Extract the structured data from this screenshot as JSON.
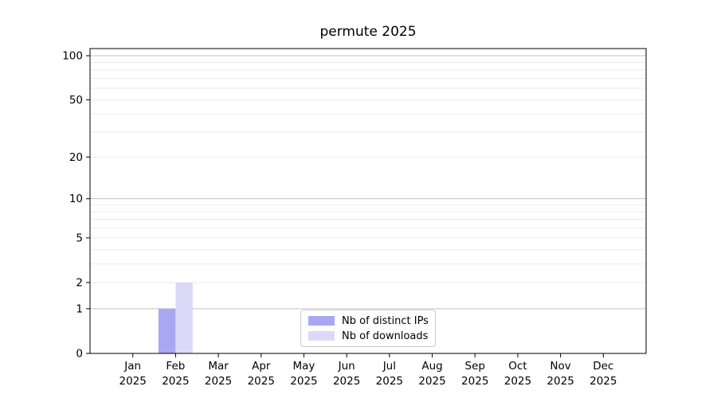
{
  "chart_data": {
    "type": "bar",
    "title": "permute 2025",
    "categories": [
      "Jan 2025",
      "Feb 2025",
      "Mar 2025",
      "Apr 2025",
      "May 2025",
      "Jun 2025",
      "Jul 2025",
      "Aug 2025",
      "Sep 2025",
      "Oct 2025",
      "Nov 2025",
      "Dec 2025"
    ],
    "series": [
      {
        "name": "Nb of distinct IPs",
        "color": "#a8a8f2",
        "values": [
          0,
          1,
          0,
          0,
          0,
          0,
          0,
          0,
          0,
          0,
          0,
          0
        ]
      },
      {
        "name": "Nb of downloads",
        "color": "#dadaf8",
        "values": [
          0,
          2,
          0,
          0,
          0,
          0,
          0,
          0,
          0,
          0,
          0,
          0
        ]
      }
    ],
    "xlabel": "",
    "ylabel": "",
    "ylim": [
      0,
      100
    ],
    "yscale": "log10(1+v)",
    "ytick_values": [
      0,
      1,
      2,
      5,
      10,
      20,
      50,
      100
    ],
    "grid_major_values": [
      1,
      10,
      100
    ],
    "grid_minor_values": [
      2,
      3,
      4,
      5,
      6,
      7,
      8,
      9,
      20,
      30,
      40,
      50,
      60,
      70,
      80,
      90
    ],
    "legend_position": "lower-center-inside",
    "colors": {
      "spine": "#000000",
      "tick_text": "#000000",
      "grid_major": "#c3c3c3",
      "grid_minor": "#ebebeb",
      "background": "#ffffff"
    }
  }
}
